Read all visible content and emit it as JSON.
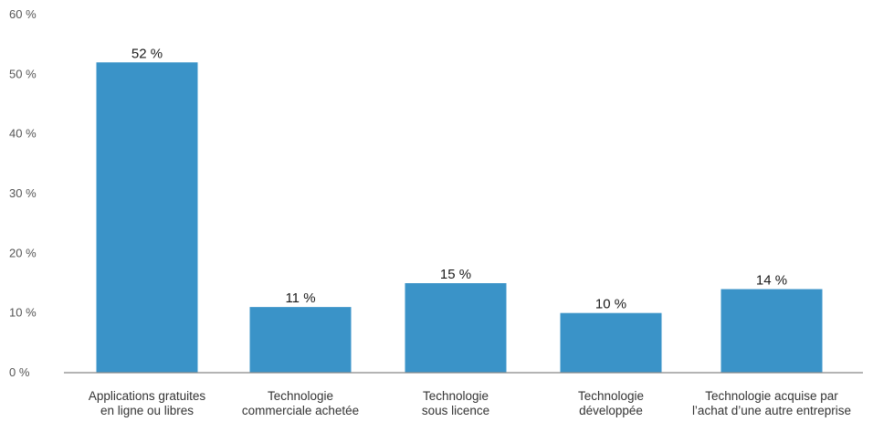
{
  "chart_data": {
    "type": "bar",
    "title": "",
    "xlabel": "",
    "ylabel": "",
    "ylim": [
      0,
      60
    ],
    "yticks": [
      0,
      10,
      20,
      30,
      40,
      50,
      60
    ],
    "ytick_suffix": " %",
    "grid": false,
    "legend": "none",
    "bar_color": "#3a93c8",
    "categories": [
      [
        "Applications gratuites",
        "en ligne ou libres"
      ],
      [
        "Technologie",
        "commerciale achetée"
      ],
      [
        "Technologie",
        "sous licence"
      ],
      [
        "Technologie",
        "développée"
      ],
      [
        "Technologie acquise par",
        "l’achat d’une autre entreprise"
      ]
    ],
    "values": [
      52,
      11,
      15,
      10,
      14
    ],
    "data_labels": [
      "52 %",
      "11 %",
      "15 %",
      "10 %",
      "14 %"
    ]
  }
}
